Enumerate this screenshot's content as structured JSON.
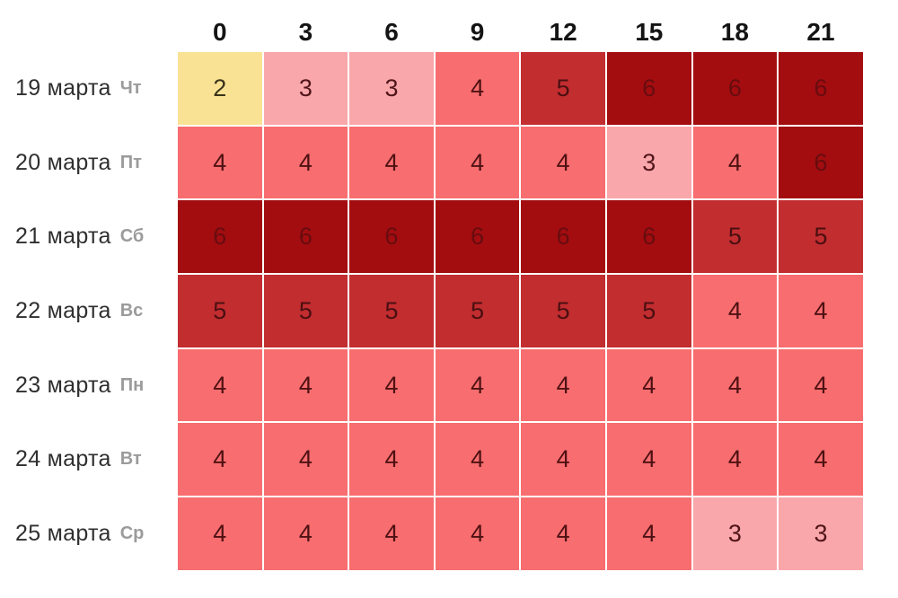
{
  "page": {
    "background": "#ffffff"
  },
  "chart_data": {
    "type": "heatmap",
    "title": "",
    "xlabel": "",
    "ylabel": "",
    "legend": "none",
    "grid_gap_color": "#ffffff",
    "hours": [
      "0",
      "3",
      "6",
      "9",
      "12",
      "15",
      "18",
      "21"
    ],
    "rows": [
      {
        "date": "19 марта",
        "weekday": "Чт",
        "values": [
          2,
          3,
          3,
          4,
          5,
          6,
          6,
          6
        ]
      },
      {
        "date": "20 марта",
        "weekday": "Пт",
        "values": [
          4,
          4,
          4,
          4,
          4,
          3,
          4,
          6
        ]
      },
      {
        "date": "21 марта",
        "weekday": "Сб",
        "values": [
          6,
          6,
          6,
          6,
          6,
          6,
          5,
          5
        ]
      },
      {
        "date": "22 марта",
        "weekday": "Вс",
        "values": [
          5,
          5,
          5,
          5,
          5,
          5,
          4,
          4
        ]
      },
      {
        "date": "23 марта",
        "weekday": "Пн",
        "values": [
          4,
          4,
          4,
          4,
          4,
          4,
          4,
          4
        ]
      },
      {
        "date": "24 марта",
        "weekday": "Вт",
        "values": [
          4,
          4,
          4,
          4,
          4,
          4,
          4,
          4
        ]
      },
      {
        "date": "25 марта",
        "weekday": "Ср",
        "values": [
          4,
          4,
          4,
          4,
          4,
          4,
          3,
          3
        ]
      }
    ],
    "value_range": [
      2,
      6
    ],
    "value_scale": {
      "2": {
        "bg": "#FAE294",
        "text": "#39321A"
      },
      "3": {
        "bg": "#F9A7AB",
        "text": "#511519"
      },
      "4": {
        "bg": "#F86D6F",
        "text": "#4E1113"
      },
      "5": {
        "bg": "#C22D30",
        "text": "#4B0F11"
      },
      "6": {
        "bg": "#A30D10",
        "text": "#680C0F"
      }
    }
  },
  "text_colors": {
    "hour_header": "#141414",
    "date": "#2f2f2f",
    "weekday": "#9b9b9b"
  }
}
